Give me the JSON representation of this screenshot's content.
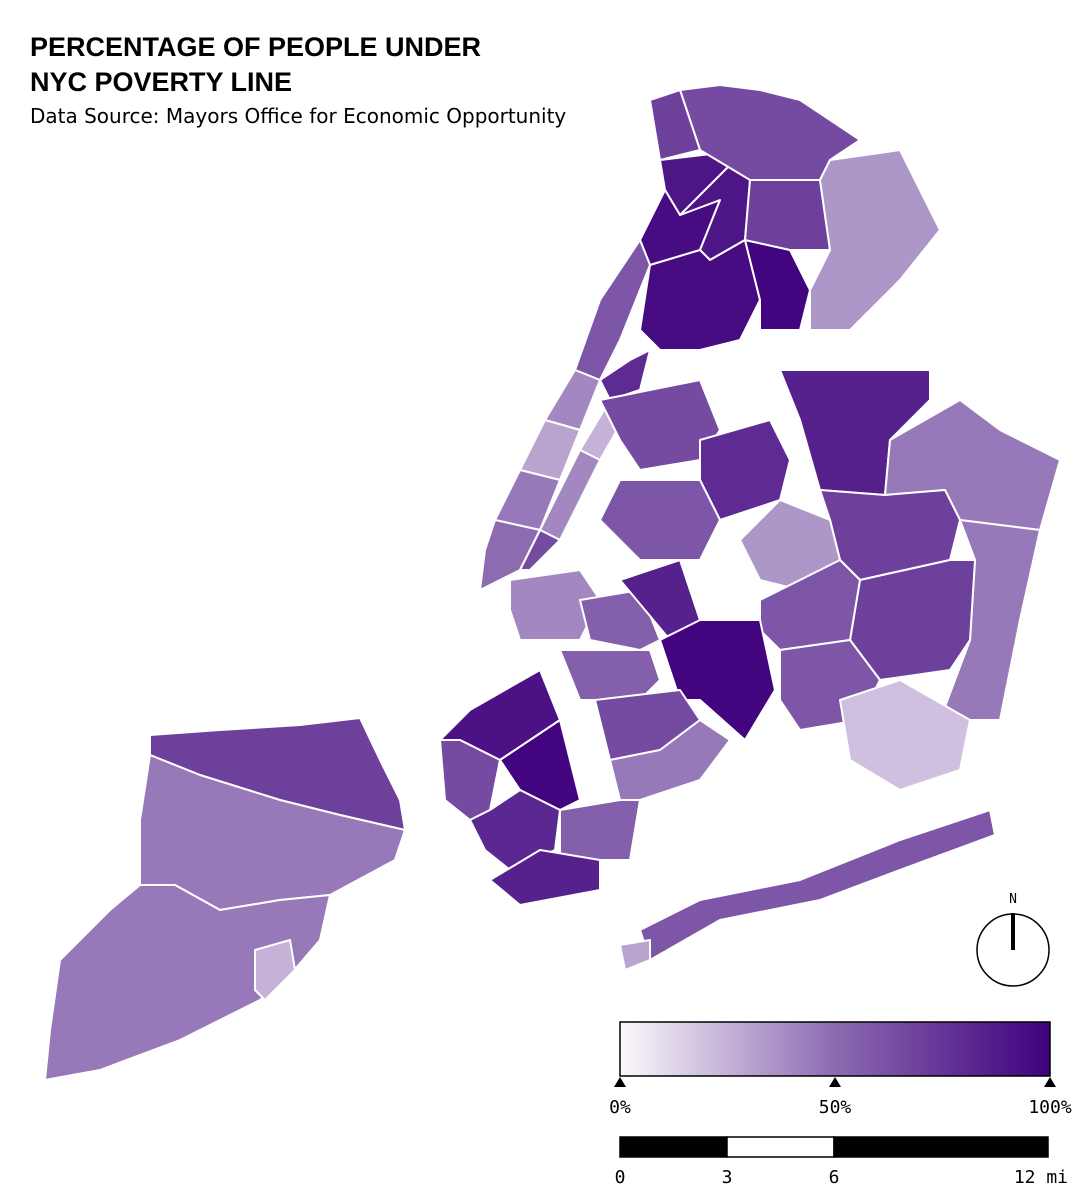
{
  "title": [
    "PERCENTAGE OF PEOPLE  UNDER",
    "NYC POVERTY LINE"
  ],
  "subtitle": "Data Source: Mayors Office for Economic Opportunity",
  "map": {
    "values": [
      70,
      45,
      45,
      25,
      90,
      95,
      60,
      40,
      30,
      45,
      50,
      80,
      25,
      40,
      65,
      90,
      95,
      98,
      70,
      65,
      35,
      70,
      85,
      45,
      65,
      80,
      70,
      45,
      70,
      35,
      60,
      60,
      20,
      60,
      40,
      55,
      85,
      98,
      55,
      92,
      98,
      65,
      82,
      65,
      45,
      55,
      85,
      60,
      30
    ],
    "colors": [
      "#fbf9fd",
      "#8c6bb1",
      "#3f007d"
    ]
  },
  "legend": {
    "lim": [
      0,
      100
    ],
    "ticks": [
      {
        "value": 0,
        "label": "0%"
      },
      {
        "value": 50,
        "label": "50%"
      },
      {
        "value": 100,
        "label": "100%"
      }
    ]
  },
  "scale_bar": {
    "lim": [
      0,
      12
    ],
    "ticks": [
      0,
      3,
      6,
      {
        "value": 12,
        "label": "12 mi"
      }
    ],
    "fills": [
      "#000000",
      "#ffffff",
      "#000000"
    ]
  },
  "compass": "N"
}
